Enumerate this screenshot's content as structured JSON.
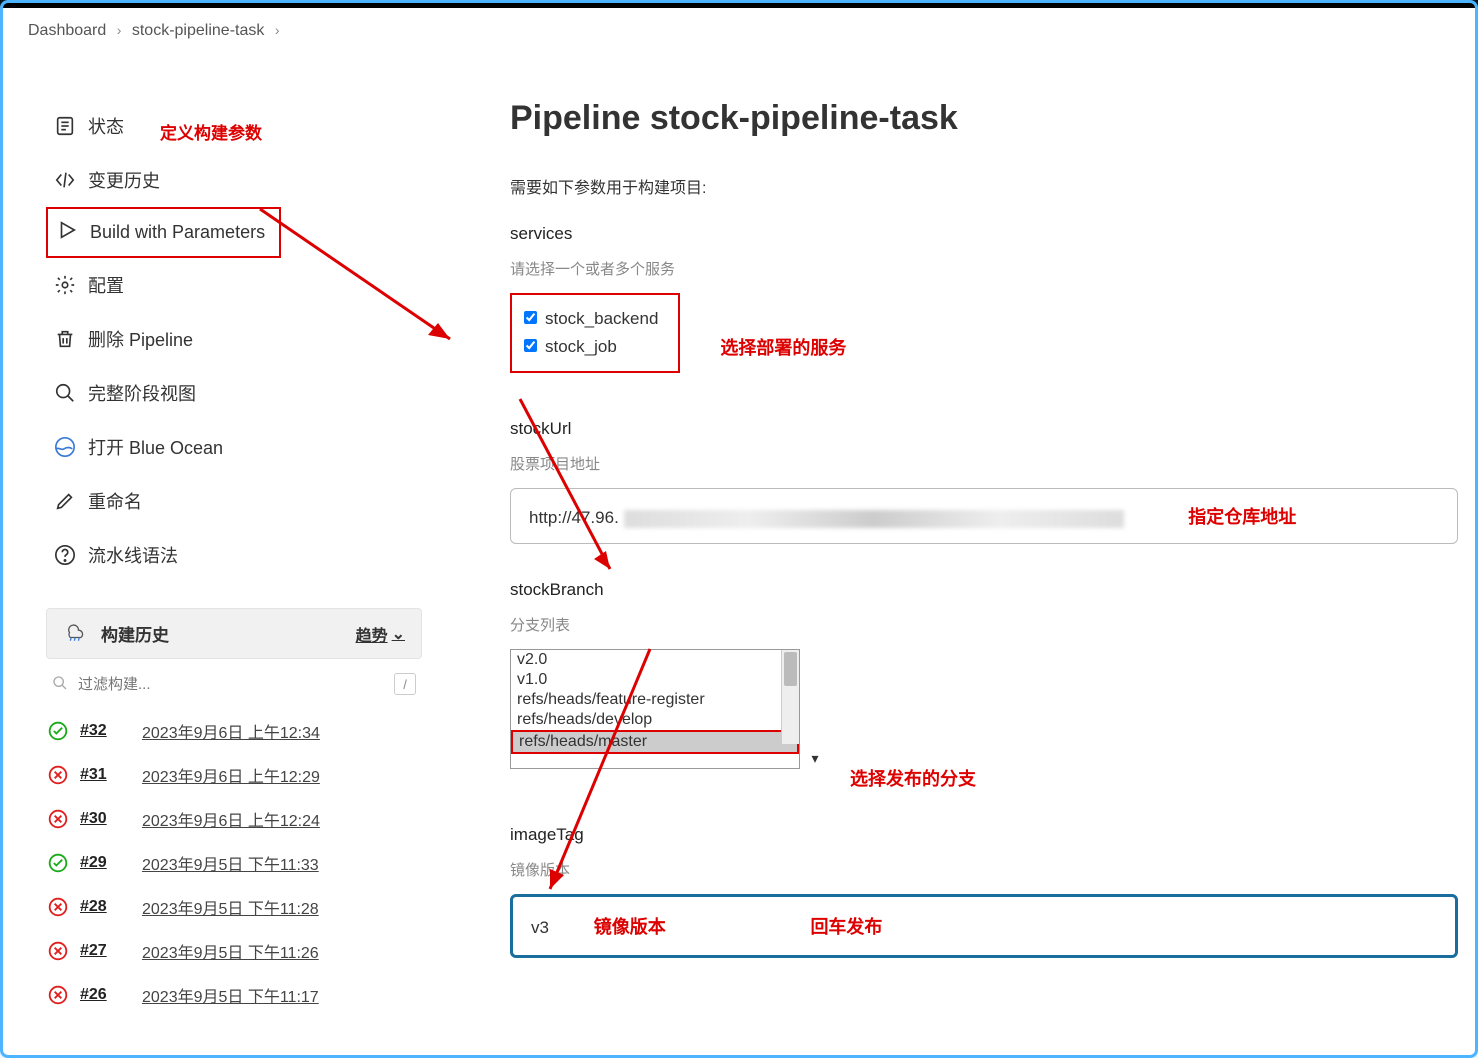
{
  "breadcrumb": {
    "a": "Dashboard",
    "b": "stock-pipeline-task"
  },
  "sidebar": {
    "status": "状态",
    "changes": "变更历史",
    "build_params": "Build with Parameters",
    "config": "配置",
    "delete": "删除 Pipeline",
    "full_stage": "完整阶段视图",
    "blue_ocean": "打开 Blue Ocean",
    "rename": "重命名",
    "syntax": "流水线语法"
  },
  "annot": {
    "def_params": "定义构建参数",
    "select_service": "选择部署的服务",
    "repo_url": "指定仓库地址",
    "select_branch": "选择发布的分支",
    "image_version": "镜像版本",
    "enter_publish": "回车发布"
  },
  "history": {
    "title": "构建历史",
    "trend": "趋势",
    "filter_placeholder": "过滤构建...",
    "builds": [
      {
        "num": "#32",
        "date": "2023年9月6日 上午12:34",
        "ok": true
      },
      {
        "num": "#31",
        "date": "2023年9月6日 上午12:29",
        "ok": false
      },
      {
        "num": "#30",
        "date": "2023年9月6日 上午12:24",
        "ok": false
      },
      {
        "num": "#29",
        "date": "2023年9月5日 下午11:33",
        "ok": true
      },
      {
        "num": "#28",
        "date": "2023年9月5日 下午11:28",
        "ok": false
      },
      {
        "num": "#27",
        "date": "2023年9月5日 下午11:26",
        "ok": false
      },
      {
        "num": "#26",
        "date": "2023年9月5日 下午11:17",
        "ok": false
      }
    ]
  },
  "main": {
    "title": "Pipeline stock-pipeline-task",
    "desc": "需要如下参数用于构建项目:",
    "services": {
      "name": "services",
      "hint": "请选择一个或者多个服务",
      "opts": [
        "stock_backend",
        "stock_job"
      ]
    },
    "stockUrl": {
      "name": "stockUrl",
      "hint": "股票项目地址",
      "value": "http://47.96."
    },
    "stockBranch": {
      "name": "stockBranch",
      "hint": "分支列表",
      "opts": [
        "v2.0",
        "v1.0",
        "refs/heads/feature-register",
        "refs/heads/develop",
        "refs/heads/master"
      ],
      "selected": 4
    },
    "imageTag": {
      "name": "imageTag",
      "hint": "镜像版本",
      "value": "v3"
    }
  }
}
